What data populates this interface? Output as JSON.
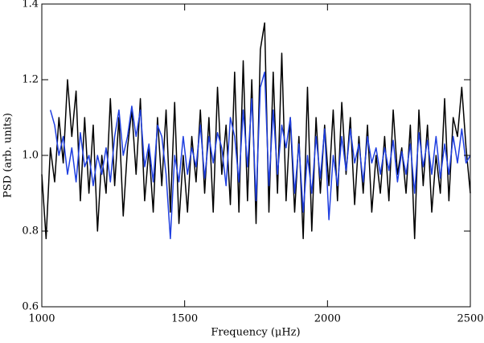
{
  "chart_data": {
    "type": "line",
    "xlabel": "Frequency (μHz)",
    "ylabel": "PSD (arb. units)",
    "x": [
      1000,
      1015,
      1030,
      1045,
      1060,
      1075,
      1090,
      1105,
      1120,
      1135,
      1150,
      1165,
      1180,
      1195,
      1210,
      1225,
      1240,
      1255,
      1270,
      1285,
      1300,
      1315,
      1330,
      1345,
      1360,
      1375,
      1390,
      1405,
      1420,
      1435,
      1450,
      1465,
      1480,
      1495,
      1510,
      1525,
      1540,
      1555,
      1570,
      1585,
      1600,
      1615,
      1630,
      1645,
      1660,
      1675,
      1690,
      1705,
      1720,
      1735,
      1750,
      1765,
      1780,
      1795,
      1810,
      1825,
      1840,
      1855,
      1870,
      1885,
      1900,
      1915,
      1930,
      1945,
      1960,
      1975,
      1990,
      2005,
      2020,
      2035,
      2050,
      2065,
      2080,
      2095,
      2110,
      2125,
      2140,
      2155,
      2170,
      2185,
      2200,
      2215,
      2230,
      2245,
      2260,
      2275,
      2290,
      2305,
      2320,
      2335,
      2350,
      2365,
      2380,
      2395,
      2410,
      2425,
      2440,
      2455,
      2470,
      2485,
      2500
    ],
    "series": [
      {
        "color": "#000000",
        "values": [
          0.95,
          0.78,
          1.02,
          0.93,
          1.1,
          0.98,
          1.2,
          1.05,
          1.17,
          0.88,
          1.1,
          0.9,
          1.08,
          0.8,
          1.0,
          0.9,
          1.15,
          0.92,
          1.1,
          0.84,
          1.02,
          1.12,
          0.95,
          1.15,
          0.88,
          1.02,
          0.85,
          1.1,
          0.92,
          1.12,
          0.85,
          1.14,
          0.82,
          1.0,
          0.85,
          1.05,
          0.93,
          1.12,
          0.9,
          1.1,
          0.85,
          1.18,
          0.95,
          1.08,
          0.87,
          1.22,
          0.85,
          1.25,
          0.88,
          1.2,
          0.82,
          1.28,
          1.35,
          0.85,
          1.22,
          0.9,
          1.27,
          0.88,
          1.1,
          0.85,
          1.05,
          0.78,
          1.18,
          0.8,
          1.1,
          0.9,
          1.08,
          0.92,
          1.12,
          0.88,
          1.14,
          0.95,
          1.1,
          0.87,
          1.05,
          0.9,
          1.08,
          0.85,
          1.0,
          0.9,
          1.05,
          0.88,
          1.12,
          0.95,
          1.02,
          0.9,
          1.08,
          0.78,
          1.12,
          0.92,
          1.08,
          0.85,
          1.0,
          0.9,
          1.15,
          0.88,
          1.1,
          1.05,
          1.18,
          1.02,
          0.9
        ]
      },
      {
        "color": "#1f3fe0",
        "values": [
          null,
          null,
          1.12,
          1.08,
          1.0,
          1.05,
          0.95,
          1.02,
          0.93,
          1.06,
          0.97,
          1.0,
          0.92,
          1.0,
          0.95,
          1.02,
          0.93,
          1.05,
          1.12,
          1.0,
          1.05,
          1.13,
          1.05,
          1.12,
          0.97,
          1.03,
          0.93,
          1.08,
          1.05,
          0.95,
          0.78,
          1.0,
          0.93,
          1.05,
          0.95,
          1.02,
          0.97,
          1.08,
          0.94,
          1.05,
          0.98,
          1.06,
          1.02,
          0.92,
          1.1,
          1.05,
          0.93,
          1.12,
          0.97,
          1.15,
          0.88,
          1.18,
          1.22,
          0.92,
          1.12,
          0.95,
          1.08,
          1.02,
          1.1,
          0.9,
          1.03,
          0.85,
          1.0,
          0.9,
          1.05,
          0.94,
          1.07,
          0.83,
          1.0,
          0.92,
          1.05,
          0.96,
          1.07,
          0.98,
          1.03,
          0.93,
          1.05,
          0.98,
          1.02,
          0.95,
          1.02,
          0.96,
          1.04,
          0.93,
          1.01,
          0.95,
          1.03,
          0.9,
          1.06,
          0.97,
          1.04,
          0.95,
          1.05,
          0.94,
          1.03,
          0.95,
          1.05,
          0.98,
          1.07,
          0.98,
          1.0
        ]
      }
    ],
    "xlim": [
      1000,
      2500
    ],
    "xticks": [
      1000,
      1500,
      2000,
      2500
    ],
    "ylim": [
      0.6,
      1.4
    ],
    "yticks": [
      0.6,
      0.8,
      {
        "value": 1.0,
        "label": "1.0"
      },
      1.2,
      1.4
    ]
  }
}
